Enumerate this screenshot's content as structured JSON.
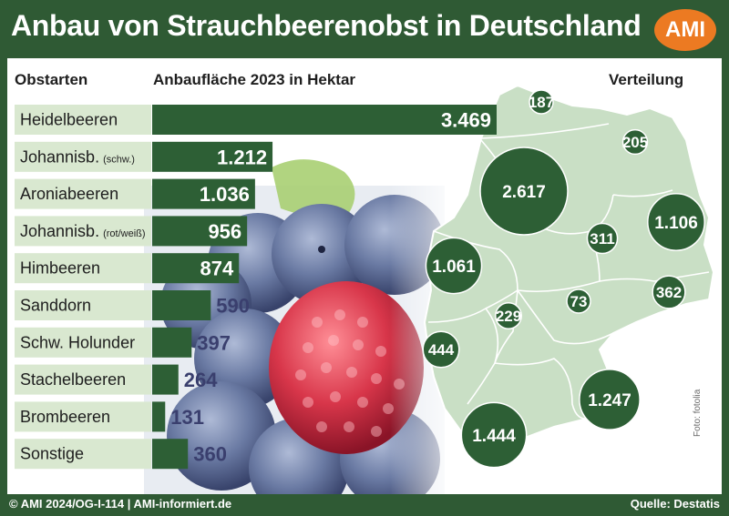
{
  "header": {
    "title": "Anbau von Strauchbeerenobst in Deutschland",
    "logo_text": "AMI"
  },
  "columns": {
    "left": "Obstarten",
    "center": "Anbaufläche 2023 in Hektar",
    "right": "Verteilung"
  },
  "footer": {
    "left": "© AMI 2024/OG-I-114 | AMI-informiert.de",
    "right": "Quelle: Destatis"
  },
  "photo_credit": "Foto: fotolia",
  "colors": {
    "frame": "#2f5a34",
    "bar": "#2d5f35",
    "label_box": "#d9e8d0",
    "map_fill": "#c9dfc5",
    "map_stroke": "#ffffff",
    "circle": "#2d5f35",
    "accent": "#ec7a22",
    "value_outside": "#3a3f6e"
  },
  "chart_data": [
    {
      "type": "bar",
      "title": "Anbaufläche 2023 in Hektar",
      "xlabel": "",
      "ylabel": "Obstarten",
      "categories": [
        "Heidelbeeren",
        "Johannisb. (schw.)",
        "Aroniabeeren",
        "Johannisb. (rot/weiß)",
        "Himbeeren",
        "Sanddorn",
        "Schw. Holunder",
        "Stachelbeeren",
        "Brombeeren",
        "Sonstige"
      ],
      "category_parts": [
        [
          "Heidelbeeren",
          ""
        ],
        [
          "Johannisb.",
          "(schw.)"
        ],
        [
          "Aroniabeeren",
          ""
        ],
        [
          "Johannisb.",
          "(rot/weiß)"
        ],
        [
          "Himbeeren",
          ""
        ],
        [
          "Sanddorn",
          ""
        ],
        [
          "Schw. Holunder",
          ""
        ],
        [
          "Stachelbeeren",
          ""
        ],
        [
          "Brombeeren",
          ""
        ],
        [
          "Sonstige",
          ""
        ]
      ],
      "values": [
        3469,
        1212,
        1036,
        956,
        874,
        590,
        397,
        264,
        131,
        360
      ],
      "value_labels": [
        "3.469",
        "1.212",
        "1.036",
        "956",
        "874",
        "590",
        "397",
        "264",
        "131",
        "360"
      ],
      "xlim": [
        0,
        3469
      ],
      "orientation": "horizontal",
      "grid": false
    },
    {
      "type": "map",
      "title": "Verteilung",
      "bubbles": [
        {
          "region": "Schleswig-Holstein",
          "value": 187,
          "label": "187"
        },
        {
          "region": "Mecklenburg-Vorpommern",
          "value": 205,
          "label": "205"
        },
        {
          "region": "Niedersachsen",
          "value": 2617,
          "label": "2.617"
        },
        {
          "region": "Brandenburg",
          "value": 1106,
          "label": "1.106"
        },
        {
          "region": "Sachsen-Anhalt",
          "value": 311,
          "label": "311"
        },
        {
          "region": "Nordrhein-Westfalen",
          "value": 1061,
          "label": "1.061"
        },
        {
          "region": "Sachsen",
          "value": 362,
          "label": "362"
        },
        {
          "region": "Thüringen",
          "value": 73,
          "label": "73"
        },
        {
          "region": "Hessen",
          "value": 229,
          "label": "229"
        },
        {
          "region": "Rheinland-Pfalz",
          "value": 444,
          "label": "444"
        },
        {
          "region": "Bayern",
          "value": 1247,
          "label": "1.247"
        },
        {
          "region": "Baden-Württemberg",
          "value": 1444,
          "label": "1.444"
        }
      ]
    }
  ]
}
